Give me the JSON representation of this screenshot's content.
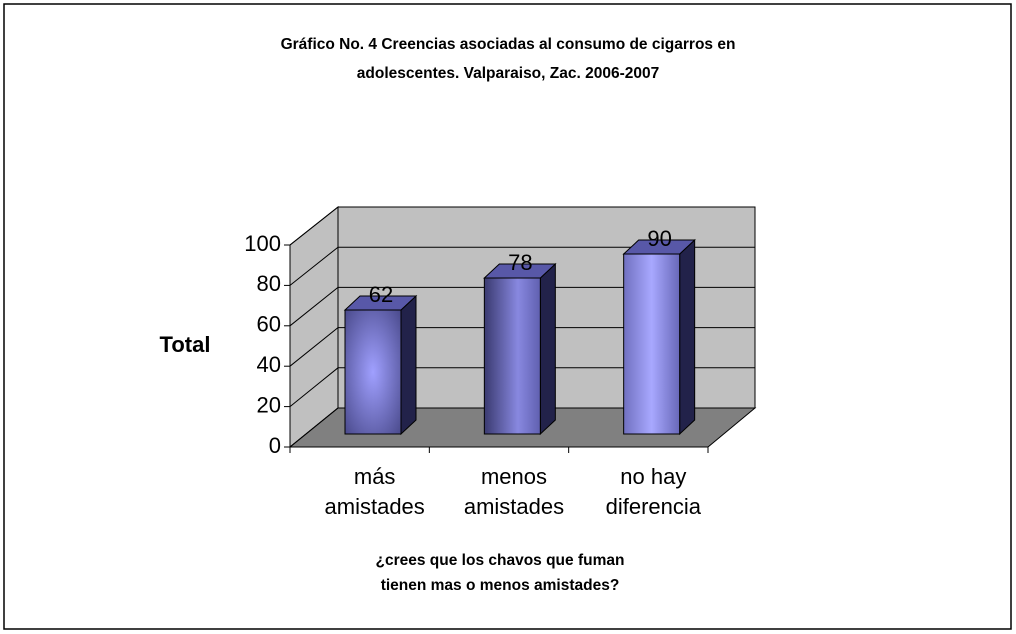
{
  "chart_data": {
    "type": "bar",
    "title": "Gráfico No. 4 Creencias asociadas al consumo de cigarros en\nadolescentes. Valparaiso, Zac. 2006-2007",
    "categories": [
      "más\namistades",
      "menos\namistades",
      "no hay\ndiferencia"
    ],
    "values": [
      62,
      78,
      90
    ],
    "color": "#9999ff",
    "ylim": [
      0,
      100
    ],
    "yticks": [
      0,
      20,
      40,
      60,
      80,
      100
    ],
    "y_label": "Total",
    "x_label": "¿crees que los chavos que fuman\ntienen mas o menos amistades?",
    "grid": true
  }
}
